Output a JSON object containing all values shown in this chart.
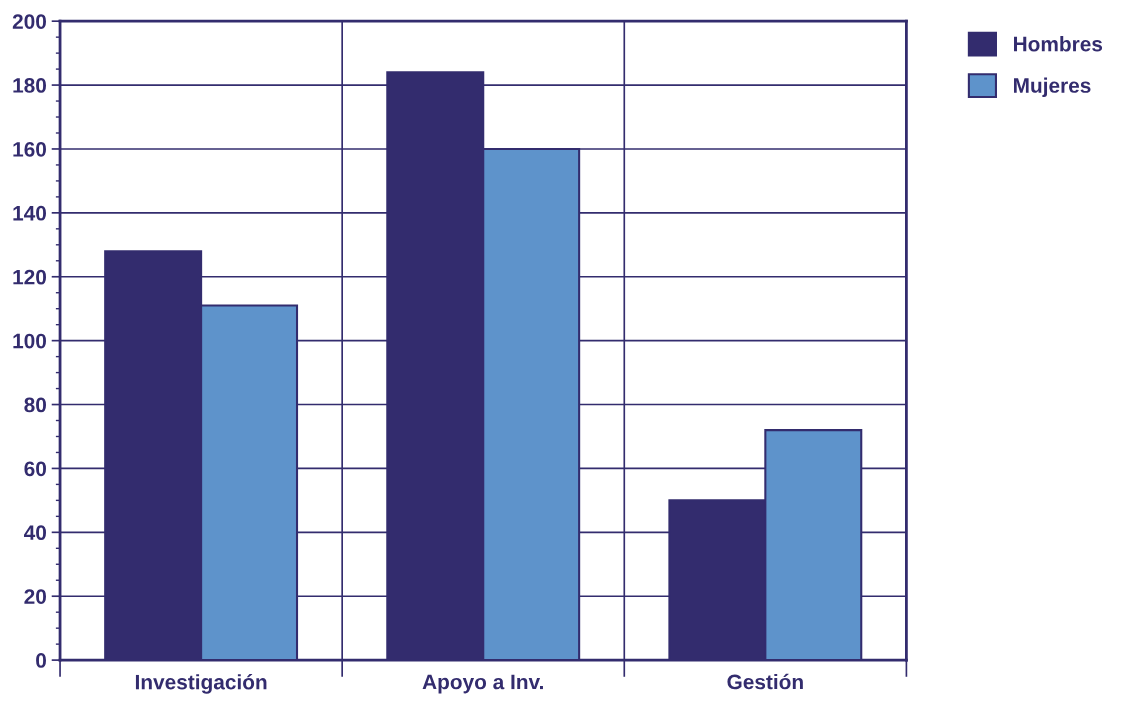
{
  "chart_data": {
    "type": "bar",
    "categories": [
      "Investigación",
      "Apoyo a Inv.",
      "Gestión"
    ],
    "series": [
      {
        "name": "Hombres",
        "color": "#332c6e",
        "values": [
          128,
          184,
          50
        ]
      },
      {
        "name": "Mujeres",
        "color": "#5e93cb",
        "values": [
          111,
          160,
          72
        ]
      }
    ],
    "ylim": [
      0,
      200
    ],
    "yticks": [
      0,
      20,
      40,
      60,
      80,
      100,
      120,
      140,
      160,
      180,
      200
    ],
    "grid": true,
    "legend": "top right"
  }
}
